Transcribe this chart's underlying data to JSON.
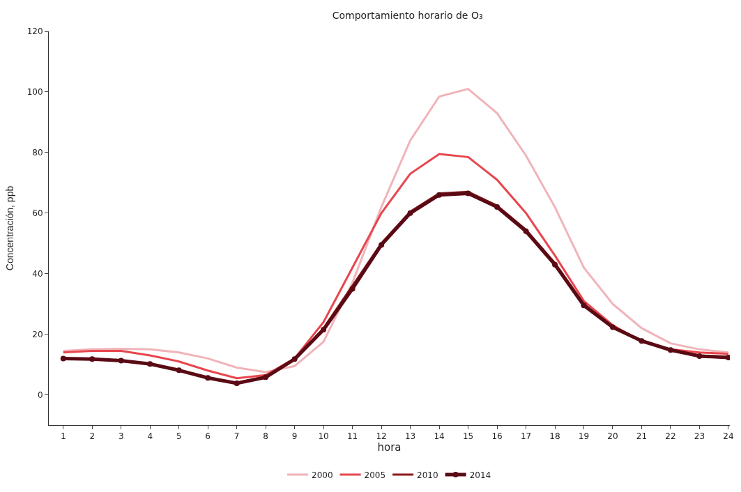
{
  "chart_data": {
    "type": "line",
    "title": "Comportamiento horario de O₃",
    "xlabel": "hora",
    "ylabel": "Concentración, ppb",
    "x": [
      1,
      2,
      3,
      4,
      5,
      6,
      7,
      8,
      9,
      10,
      11,
      12,
      13,
      14,
      15,
      16,
      17,
      18,
      19,
      20,
      21,
      22,
      23,
      24
    ],
    "xlim": [
      0.5,
      24.05
    ],
    "xticks": [
      1,
      2,
      3,
      4,
      5,
      6,
      7,
      8,
      9,
      10,
      11,
      12,
      13,
      14,
      15,
      16,
      17,
      18,
      19,
      20,
      21,
      22,
      23,
      24
    ],
    "ylim": [
      -10,
      120
    ],
    "yticks": [
      0,
      20,
      40,
      60,
      80,
      100,
      120
    ],
    "legend": "bottom",
    "series": [
      {
        "name": "2000",
        "color": "#f0b4b9",
        "marker": "none",
        "values": [
          14.5,
          15,
          15.2,
          15,
          14,
          12,
          9,
          7.5,
          9.5,
          17.5,
          37,
          62,
          84,
          98.5,
          101,
          93,
          79,
          62,
          42,
          30,
          22,
          17,
          15,
          14
        ]
      },
      {
        "name": "2005",
        "color": "#e8464e",
        "marker": "none",
        "values": [
          14,
          14.5,
          14.5,
          13,
          11,
          8,
          5.5,
          6.5,
          12,
          24,
          42,
          60,
          73,
          79.5,
          78.5,
          71,
          60,
          46,
          31,
          23,
          17.5,
          15,
          14,
          13.5
        ]
      },
      {
        "name": "2010",
        "color": "#8b1a1a",
        "marker": "none",
        "values": [
          12,
          11.8,
          11.3,
          10.2,
          8.2,
          5.5,
          4,
          6,
          11.5,
          22,
          36,
          50,
          60.5,
          66.5,
          67,
          62.5,
          54.5,
          43.5,
          30,
          22.5,
          18,
          15,
          13,
          12.5
        ]
      },
      {
        "name": "2014",
        "color": "#5a0a14",
        "marker": "circle",
        "values": [
          12,
          11.8,
          11.3,
          10.2,
          8.1,
          5.6,
          3.8,
          5.8,
          11.8,
          21.5,
          35,
          49.5,
          60,
          66,
          66.5,
          62,
          54,
          43,
          29.5,
          22.3,
          17.8,
          14.8,
          12.8,
          12.3
        ]
      }
    ]
  }
}
